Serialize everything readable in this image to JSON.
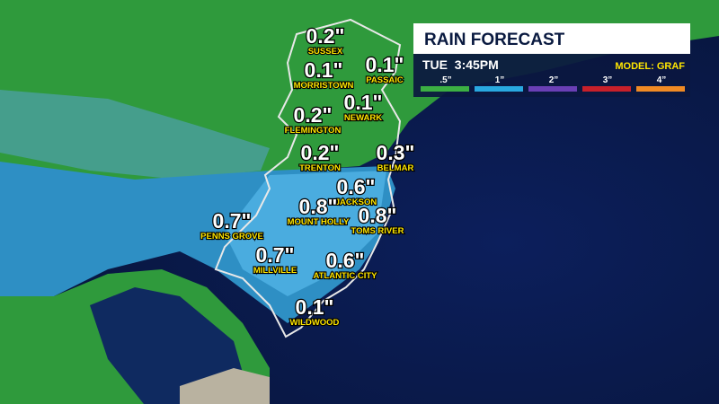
{
  "header": {
    "title": "RAIN FORECAST",
    "time": "TUE  3:45PM",
    "model": "MODEL: GRAF"
  },
  "legend": [
    {
      "label": ".5”",
      "color": "#3cb043"
    },
    {
      "label": "1”",
      "color": "#29a8e0"
    },
    {
      "label": "2”",
      "color": "#6a3fb5"
    },
    {
      "label": "3”",
      "color": "#c8202a"
    },
    {
      "label": "4”",
      "color": "#f08a24"
    }
  ],
  "locations": [
    {
      "name": "SUSSEX",
      "amount": "0.2\""
    },
    {
      "name": "MORRISTOWN",
      "amount": "0.1\""
    },
    {
      "name": "PASSAIC",
      "amount": "0.1\""
    },
    {
      "name": "NEWARK",
      "amount": "0.1\""
    },
    {
      "name": "FLEMINGTON",
      "amount": "0.2\""
    },
    {
      "name": "TRENTON",
      "amount": "0.2\""
    },
    {
      "name": "BELMAR",
      "amount": "0.3\""
    },
    {
      "name": "JACKSON",
      "amount": "0.6\""
    },
    {
      "name": "MOUNT HOLLY",
      "amount": "0.8\""
    },
    {
      "name": "TOMS RIVER",
      "amount": "0.8\""
    },
    {
      "name": "PENNS GROVE",
      "amount": "0.7\""
    },
    {
      "name": "MILLVILLE",
      "amount": "0.7\""
    },
    {
      "name": "ATLANTIC CITY",
      "amount": "0.6\""
    },
    {
      "name": "WILDWOOD",
      "amount": "0.1\""
    }
  ]
}
